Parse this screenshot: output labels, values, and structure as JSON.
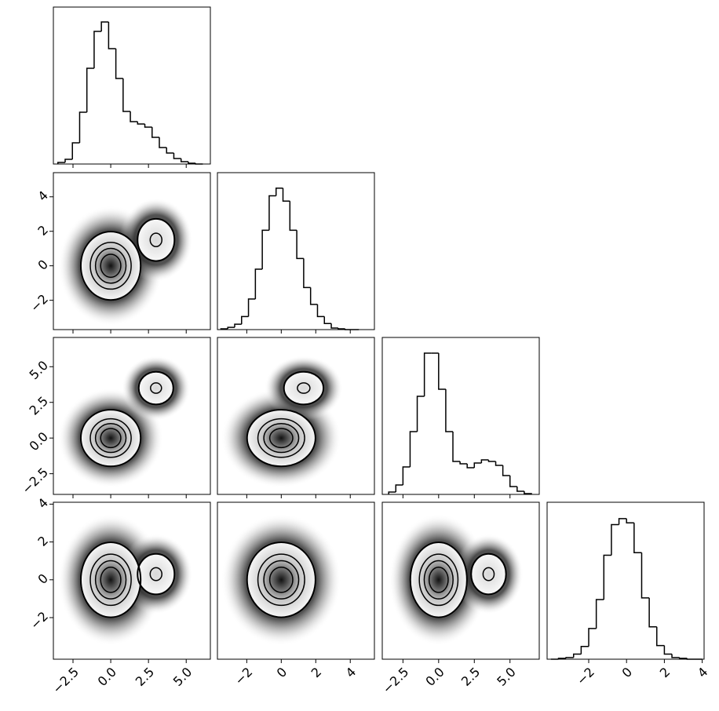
{
  "chart_data": {
    "type": "corner",
    "parameters": [
      {
        "range": [
          -3.8,
          6.6
        ],
        "ticks": [
          {
            "value": -2.5,
            "label": "−2.5"
          },
          {
            "value": 0,
            "label": "0.0"
          },
          2.5,
          {
            "value": 5,
            "label": "5.0"
          }
        ],
        "bins": [
          -3.5,
          -3.02,
          -2.54,
          -2.06,
          -1.58,
          -1.1,
          -0.62,
          -0.14,
          0.34,
          0.82,
          1.3,
          1.78,
          2.26,
          2.74,
          3.22,
          3.7,
          4.18,
          4.66,
          5.14,
          5.62,
          6.1
        ],
        "counts": [
          2,
          6,
          27,
          66,
          122,
          169,
          181,
          147,
          109,
          67,
          54,
          51,
          47,
          34,
          21,
          14,
          7,
          3,
          1,
          0
        ],
        "ylim": [
          0,
          190
        ]
      },
      {
        "range": [
          -3.7,
          5.4
        ],
        "ticks": [
          {
            "value": -2,
            "label": "−2"
          },
          0,
          2,
          4
        ],
        "bins": [
          -3.5,
          -3.1,
          -2.7,
          -2.3,
          -1.9,
          -1.5,
          -1.1,
          -0.7,
          -0.3,
          0.1,
          0.5,
          0.9,
          1.3,
          1.7,
          2.1,
          2.5,
          2.9,
          3.3,
          3.7,
          4.1,
          4.5
        ],
        "counts": [
          1,
          3,
          7,
          17,
          40,
          79,
          130,
          175,
          185,
          168,
          130,
          93,
          55,
          33,
          17,
          8,
          2,
          1,
          0,
          0
        ],
        "ylim": [
          0,
          195
        ]
      },
      {
        "range": [
          -3.95,
          7.05
        ],
        "ticks": [
          {
            "value": -2.5,
            "label": "−2.5"
          },
          {
            "value": 0,
            "label": "0.0"
          },
          2.5,
          {
            "value": 5,
            "label": "5.0"
          }
        ],
        "bins": [
          -3.5,
          -3.0,
          -2.5,
          -2.0,
          -1.5,
          -1.0,
          -0.5,
          0.0,
          0.5,
          1.0,
          1.5,
          2.0,
          2.5,
          3.0,
          3.5,
          4.0,
          4.5,
          5.0,
          5.5,
          6.0,
          6.5
        ],
        "counts": [
          3,
          12,
          35,
          80,
          125,
          180,
          180,
          134,
          80,
          42,
          39,
          34,
          40,
          44,
          42,
          37,
          24,
          10,
          4,
          1
        ],
        "ylim": [
          0,
          190
        ]
      },
      {
        "range": [
          -4.2,
          4.1
        ],
        "ticks": [
          {
            "value": -2,
            "label": "−2"
          },
          0,
          2,
          4
        ],
        "bins": [
          -4.0,
          -3.6,
          -3.2,
          -2.8,
          -2.4,
          -2.0,
          -1.6,
          -1.2,
          -0.8,
          -0.4,
          0.0,
          0.4,
          0.8,
          1.2,
          1.6,
          2.0,
          2.4,
          2.8,
          3.2,
          3.6,
          4.0
        ],
        "counts": [
          0,
          1,
          2,
          6,
          15,
          36,
          70,
          122,
          158,
          165,
          160,
          125,
          72,
          38,
          16,
          6,
          2,
          1,
          0,
          0
        ],
        "ylim": [
          0,
          175
        ]
      }
    ],
    "panels": [
      {
        "x_param": 0,
        "y_param": 1,
        "components": [
          {
            "x": 0,
            "y": 0,
            "sx": 1,
            "sy": 1,
            "weight": 1
          },
          {
            "x": 3,
            "y": 1.5,
            "sx": 0.8,
            "sy": 0.8,
            "weight": 0.45
          }
        ]
      },
      {
        "x_param": 0,
        "y_param": 2,
        "components": [
          {
            "x": 0,
            "y": 0,
            "sx": 1,
            "sy": 1,
            "weight": 1
          },
          {
            "x": 3,
            "y": 3.5,
            "sx": 0.75,
            "sy": 0.75,
            "weight": 0.45
          }
        ]
      },
      {
        "x_param": 1,
        "y_param": 2,
        "components": [
          {
            "x": 0,
            "y": 0,
            "sx": 1,
            "sy": 1,
            "weight": 1
          },
          {
            "x": 1.3,
            "y": 3.5,
            "sx": 0.75,
            "sy": 0.75,
            "weight": 0.45
          }
        ]
      },
      {
        "x_param": 0,
        "y_param": 3,
        "components": [
          {
            "x": 0,
            "y": 0,
            "sx": 1,
            "sy": 1,
            "weight": 1
          },
          {
            "x": 3,
            "y": 0.3,
            "sx": 0.8,
            "sy": 0.7,
            "weight": 0.45
          }
        ]
      },
      {
        "x_param": 1,
        "y_param": 3,
        "components": [
          {
            "x": 0,
            "y": 0,
            "sx": 1,
            "sy": 1,
            "weight": 1
          }
        ]
      },
      {
        "x_param": 2,
        "y_param": 3,
        "components": [
          {
            "x": 0,
            "y": 0,
            "sx": 1,
            "sy": 1,
            "weight": 1
          },
          {
            "x": 3.5,
            "y": 0.3,
            "sx": 0.8,
            "sy": 0.7,
            "weight": 0.45
          }
        ]
      }
    ]
  }
}
